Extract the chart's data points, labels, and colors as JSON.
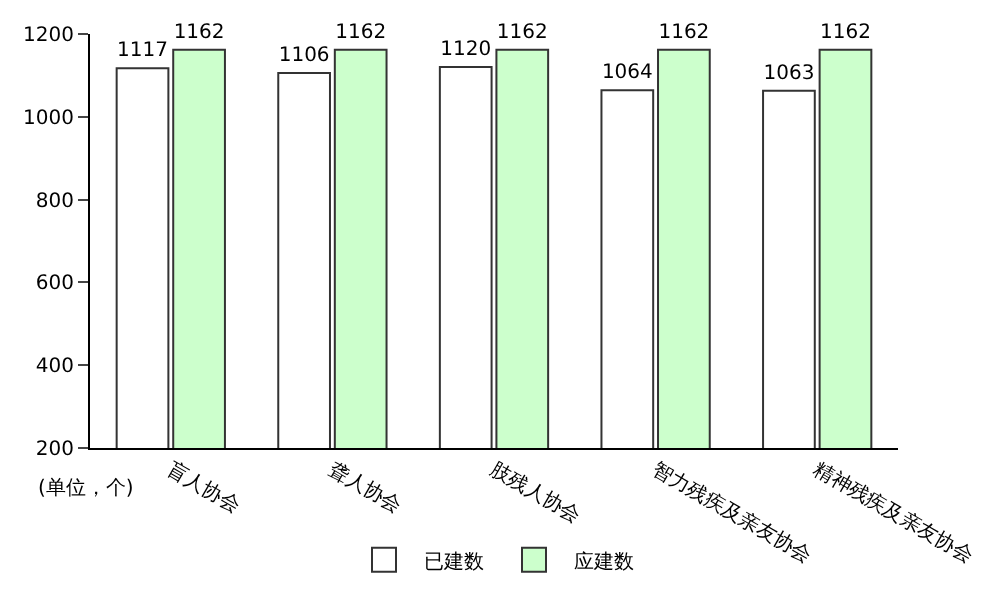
{
  "chart_data": {
    "type": "bar",
    "categories": [
      "盲人协会",
      "聋人协会",
      "肢残人协会",
      "智力残疾及亲友协会",
      "精神残疾及亲友协会"
    ],
    "series": [
      {
        "name": "已建数",
        "color": "#ffffff",
        "values": [
          1117,
          1106,
          1120,
          1064,
          1063
        ]
      },
      {
        "name": "应建数",
        "color": "#ccffcc",
        "values": [
          1162,
          1162,
          1162,
          1162,
          1162
        ]
      }
    ],
    "ylim": [
      200,
      1200
    ],
    "yticks": [
      200,
      400,
      600,
      800,
      1000,
      1200
    ],
    "data_labels": true,
    "legend": "bottom",
    "grid": false,
    "annotations": [
      "(单位，个)"
    ]
  }
}
